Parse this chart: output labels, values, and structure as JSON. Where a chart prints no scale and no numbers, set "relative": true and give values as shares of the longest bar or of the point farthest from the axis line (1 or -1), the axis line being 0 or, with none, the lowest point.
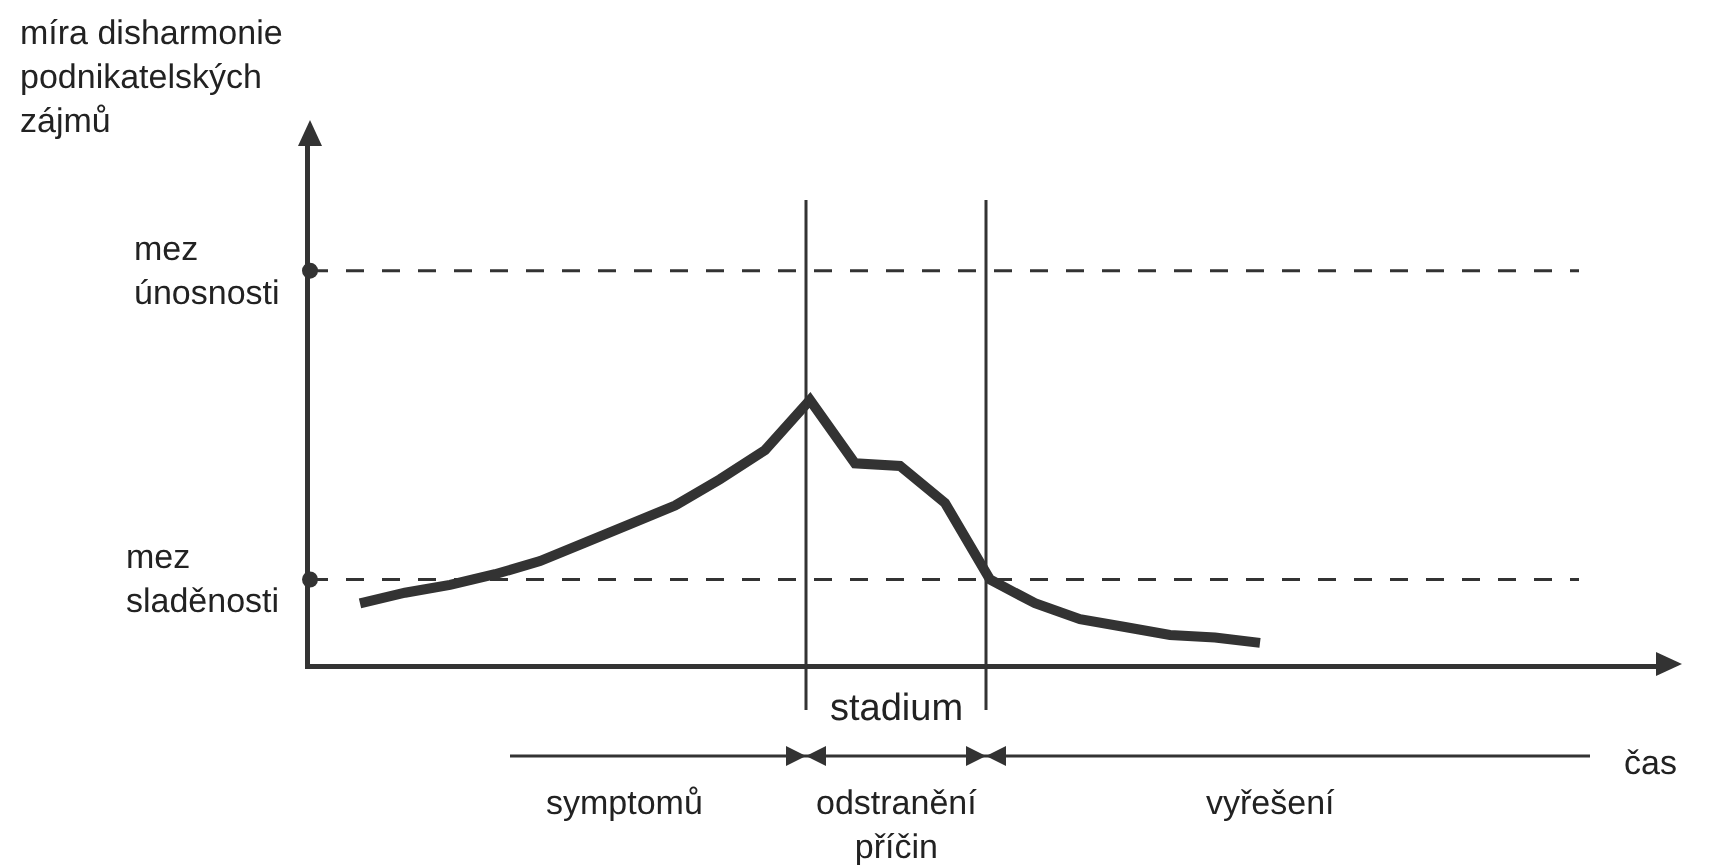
{
  "chart_data": {
    "type": "line",
    "relative": true,
    "categories": [
      null,
      null,
      null,
      null,
      null,
      null,
      null,
      null,
      null,
      null,
      null,
      null,
      null,
      null,
      null,
      null,
      null,
      null,
      null,
      null,
      null
    ],
    "series": [
      {
        "color": "#333333",
        "values": [
          0.23,
          0.27,
          0.3,
          0.34,
          0.39,
          0.46,
          0.53,
          0.6,
          0.7,
          0.81,
          1,
          0.76,
          0.75,
          0.61,
          0.32,
          0.23,
          0.17,
          0.14,
          0.11,
          0.1,
          0.08
        ]
      }
    ],
    "marker": "none",
    "line_style": "solid",
    "ref_lines": [
      {
        "axis": "y",
        "value": 1.49,
        "label": "mez únosnosti",
        "line_style": "dashed"
      },
      {
        "axis": "y",
        "value": 0.32,
        "label": "mez sladěnosti",
        "line_style": "dashed"
      }
    ],
    "annotations": [
      "míra disharmonie podnikatelských zájmů",
      "stadium",
      "symptomů",
      "odstranění příčin",
      "vyřešení",
      "čas"
    ]
  }
}
